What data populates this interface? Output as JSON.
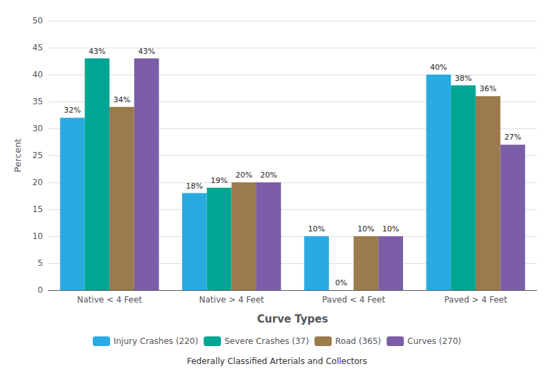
{
  "chart_data": {
    "type": "bar",
    "xlabel": "Curve Types",
    "subtitle": "Federally Classified Arterials and Collectors",
    "ylabel": "Percent",
    "categories": [
      "Native < 4 Feet",
      "Native > 4 Feet",
      "Paved < 4 Feet",
      "Paved > 4 Feet"
    ],
    "series": [
      {
        "name": "Injury Crashes (220)",
        "color": "#29ABE2",
        "values": [
          32,
          18,
          10,
          40
        ],
        "value_labels": [
          "32%",
          "18%",
          "10%",
          "40%"
        ]
      },
      {
        "name": "Severe Crashes (37)",
        "color": "#00A693",
        "values": [
          43,
          19,
          0,
          38
        ],
        "value_labels": [
          "43%",
          "19%",
          "0%",
          "38%"
        ]
      },
      {
        "name": "Road (365)",
        "color": "#9B7A4B",
        "values": [
          34,
          20,
          10,
          36
        ],
        "value_labels": [
          "34%",
          "20%",
          "10%",
          "36%"
        ]
      },
      {
        "name": "Curves (270)",
        "color": "#7B5EA7",
        "values": [
          43,
          20,
          10,
          27
        ],
        "value_labels": [
          "43%",
          "20%",
          "10%",
          "27%"
        ]
      }
    ],
    "ylim": [
      0,
      50
    ],
    "yticks": [
      0,
      5,
      10,
      15,
      20,
      25,
      30,
      35,
      40,
      45,
      50
    ],
    "grid": true,
    "legend": "bottom",
    "data_labels": true
  }
}
